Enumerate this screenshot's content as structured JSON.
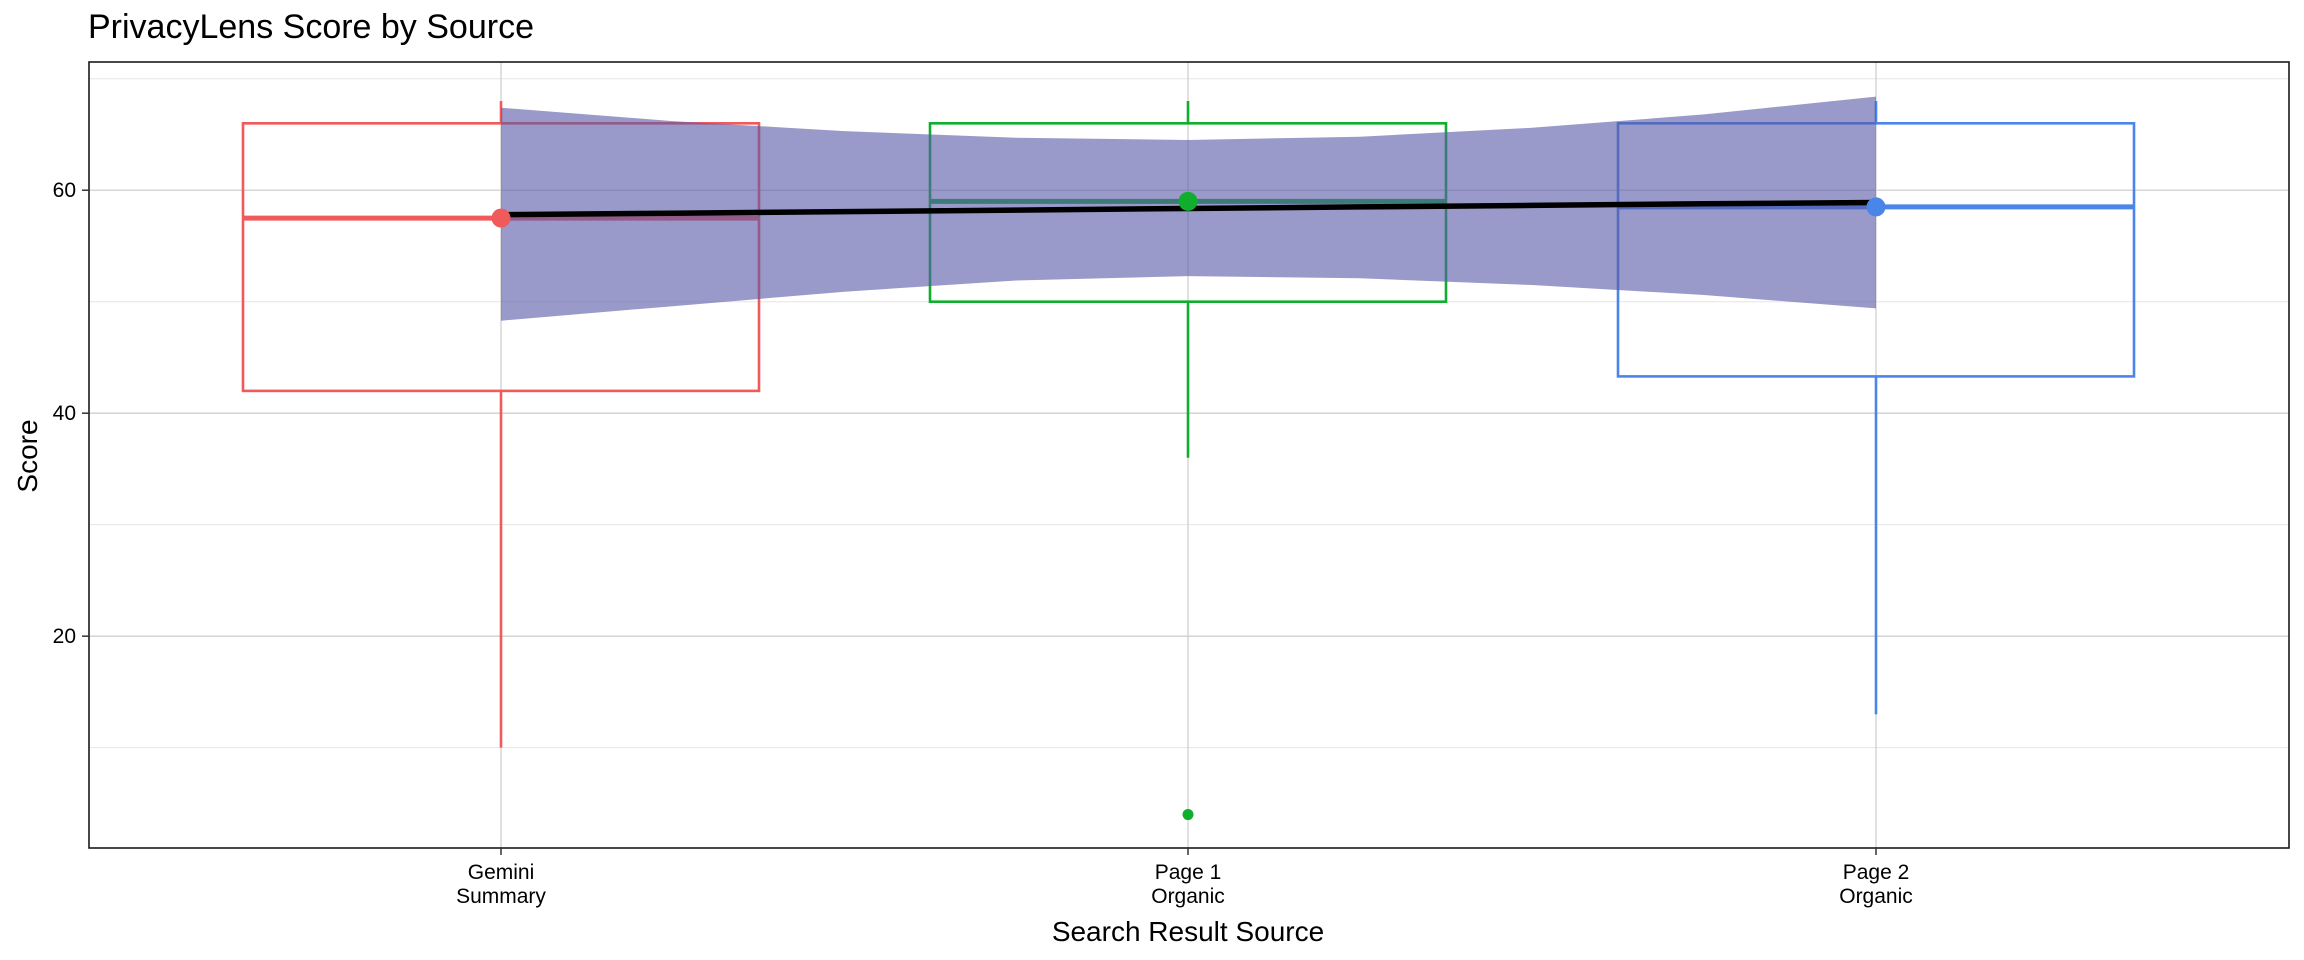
{
  "chart_data": {
    "type": "box",
    "title": "PrivacyLens Score by Source",
    "xlabel": "Search Result Source",
    "ylabel": "Score",
    "categories": [
      {
        "lines": [
          "Gemini",
          "Summary"
        ],
        "color": "#F05A5A"
      },
      {
        "lines": [
          "Page 1",
          "Organic"
        ],
        "color": "#0FAF2D"
      },
      {
        "lines": [
          "Page 2",
          "Organic"
        ],
        "color": "#4A86E8"
      }
    ],
    "ylim": [
      1,
      71.5
    ],
    "y_ticks": [
      20,
      40,
      60
    ],
    "y_minor_ticks": [
      10,
      30,
      50,
      70
    ],
    "grid": true,
    "boxes": [
      {
        "q1": 42.0,
        "median": 57.5,
        "q3": 66.0,
        "whisker_low": 10.0,
        "whisker_high": 68.0,
        "outliers": []
      },
      {
        "q1": 50.0,
        "median": 59.0,
        "q3": 66.0,
        "whisker_low": 36.0,
        "whisker_high": 68.0,
        "outliers": [
          4.0
        ]
      },
      {
        "q1": 43.3,
        "median": 58.5,
        "q3": 66.0,
        "whisker_low": 13.0,
        "whisker_high": 68.0,
        "outliers": []
      }
    ],
    "means": [
      57.5,
      59.0,
      58.5
    ],
    "trend": {
      "color": "#000000",
      "ribbon_color": "#5B5CA8",
      "x": [
        1,
        1.25,
        1.5,
        1.75,
        2,
        2.25,
        2.5,
        2.75,
        3
      ],
      "fit": [
        57.8,
        57.94,
        58.08,
        58.22,
        58.36,
        58.5,
        58.64,
        58.78,
        58.9
      ],
      "upper": [
        67.4,
        66.2,
        65.3,
        64.7,
        64.5,
        64.8,
        65.6,
        66.8,
        68.4
      ],
      "lower": [
        48.3,
        49.6,
        50.9,
        51.9,
        52.3,
        52.1,
        51.5,
        50.6,
        49.4
      ]
    }
  }
}
